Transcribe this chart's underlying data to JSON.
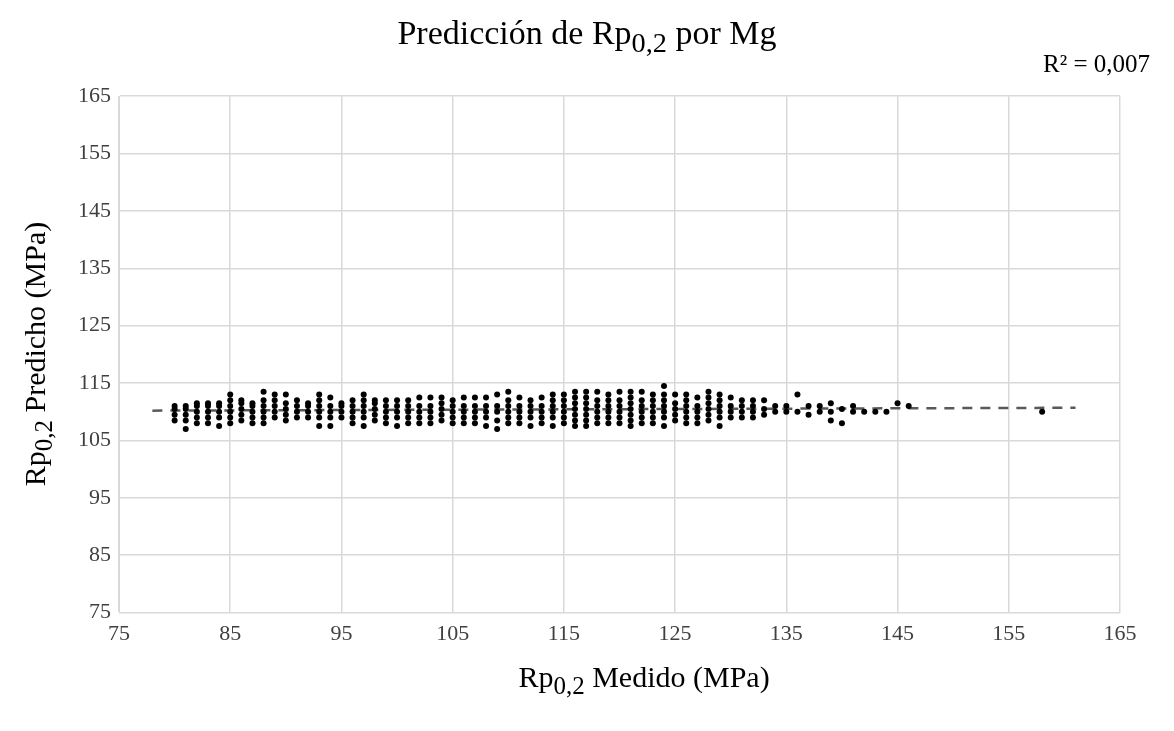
{
  "chart_data": {
    "type": "scatter",
    "title": "Predicción de Rp$_{0,2}$ por Mg",
    "xlabel": "Rp$_{0,2}$ Medido (MPa)",
    "ylabel": "Rp$_{0,2}$ Predicho (MPa)",
    "annotations": [
      "R² = 0,007"
    ],
    "xlim": [
      75,
      165
    ],
    "xticks": [
      75,
      85,
      95,
      105,
      115,
      125,
      135,
      145,
      155,
      165
    ],
    "ylim": [
      75,
      165
    ],
    "yticks": [
      75,
      85,
      95,
      105,
      115,
      125,
      135,
      145,
      155,
      165
    ],
    "grid": true,
    "legend": false,
    "series": [
      {
        "color": "#000000",
        "marker": "circle",
        "x": [
          80,
          80,
          80,
          80,
          81,
          81,
          81,
          81,
          81,
          82,
          82,
          82,
          82,
          82,
          83,
          83,
          83,
          83,
          83,
          84,
          84,
          84,
          84,
          84,
          85,
          85,
          85,
          85,
          85,
          85,
          86,
          86,
          86,
          86,
          86,
          87,
          87,
          87,
          87,
          87,
          88,
          88,
          88,
          88,
          88,
          88,
          89,
          89,
          89,
          89,
          89,
          90,
          90,
          90,
          90,
          90,
          91,
          91,
          91,
          91,
          92,
          92,
          92,
          92,
          93,
          93,
          93,
          93,
          93,
          93,
          94,
          94,
          94,
          94,
          94,
          95,
          95,
          95,
          95,
          96,
          96,
          96,
          96,
          96,
          97,
          97,
          97,
          97,
          97,
          97,
          98,
          98,
          98,
          98,
          98,
          99,
          99,
          99,
          99,
          99,
          100,
          100,
          100,
          100,
          100,
          101,
          101,
          101,
          101,
          101,
          102,
          102,
          102,
          102,
          102,
          103,
          103,
          103,
          103,
          103,
          104,
          104,
          104,
          104,
          104,
          105,
          105,
          105,
          105,
          105,
          106,
          106,
          106,
          106,
          106,
          107,
          107,
          107,
          107,
          107,
          108,
          108,
          108,
          108,
          108,
          109,
          109,
          109,
          109,
          109,
          110,
          110,
          110,
          110,
          110,
          110,
          111,
          111,
          111,
          111,
          111,
          112,
          112,
          112,
          112,
          112,
          113,
          113,
          113,
          113,
          113,
          114,
          114,
          114,
          114,
          114,
          114,
          115,
          115,
          115,
          115,
          115,
          115,
          116,
          116,
          116,
          116,
          116,
          116,
          116,
          117,
          117,
          117,
          117,
          117,
          117,
          117,
          118,
          118,
          118,
          118,
          118,
          118,
          119,
          119,
          119,
          119,
          119,
          119,
          120,
          120,
          120,
          120,
          120,
          120,
          121,
          121,
          121,
          121,
          121,
          121,
          121,
          122,
          122,
          122,
          122,
          122,
          122,
          123,
          123,
          123,
          123,
          123,
          123,
          124,
          124,
          124,
          124,
          124,
          124,
          124,
          125,
          125,
          125,
          125,
          125,
          126,
          126,
          126,
          126,
          126,
          126,
          127,
          127,
          127,
          127,
          127,
          128,
          128,
          128,
          128,
          128,
          128,
          129,
          129,
          129,
          129,
          129,
          129,
          130,
          130,
          130,
          130,
          131,
          131,
          131,
          131,
          132,
          132,
          132,
          132,
          133,
          133,
          133,
          134,
          134,
          135,
          135,
          136,
          136,
          137,
          137,
          138,
          138,
          139,
          139,
          139,
          140,
          140,
          141,
          141,
          142,
          143,
          144,
          145,
          146,
          158
        ],
        "values": [
          108.5,
          109.5,
          110.5,
          111,
          107,
          108.5,
          109.5,
          110.5,
          111,
          108,
          109,
          110,
          111,
          111.5,
          108,
          109,
          110,
          111,
          111.5,
          107.5,
          109,
          110,
          111,
          111.5,
          108,
          109,
          110,
          111,
          112,
          113,
          108.5,
          109.5,
          110.5,
          111.5,
          112,
          108,
          109,
          110,
          111,
          111.5,
          108,
          109,
          110,
          111,
          112,
          113.5,
          109,
          110,
          111,
          112,
          113,
          108.5,
          109.5,
          110.5,
          111.5,
          113,
          109,
          110,
          111,
          112,
          109,
          110,
          111,
          111.5,
          107.5,
          109,
          110,
          111,
          112,
          113,
          107.5,
          109,
          110,
          111,
          112.5,
          109,
          110,
          111,
          111.5,
          108,
          109,
          110,
          111,
          112,
          107.5,
          109,
          110,
          111,
          112,
          113,
          108.5,
          109.5,
          110.5,
          111.5,
          112,
          108,
          109,
          110,
          111,
          112,
          107.5,
          109,
          110,
          111,
          112,
          108,
          109,
          110,
          111,
          112,
          108,
          109,
          110,
          111,
          112.5,
          108,
          109,
          110,
          111,
          112.5,
          108.5,
          109.5,
          110.5,
          111.5,
          112.5,
          108,
          109,
          110,
          111,
          112,
          108,
          109,
          110,
          111,
          112.5,
          108,
          109,
          110,
          111,
          112.5,
          107.5,
          109,
          110,
          111,
          112.5,
          107,
          108.5,
          110,
          111,
          113,
          108,
          109,
          110,
          111,
          112,
          113.5,
          108,
          109,
          110,
          111,
          112.5,
          107.5,
          109,
          110,
          111,
          112,
          108,
          109,
          110,
          111,
          112.5,
          107.5,
          109,
          110,
          111,
          112,
          113,
          108,
          109,
          110,
          111,
          112,
          113,
          107.5,
          108.5,
          109.5,
          110.5,
          111.5,
          112.5,
          113.5,
          107.5,
          108.5,
          109.5,
          110.5,
          111.5,
          112.5,
          113.5,
          108,
          109,
          110,
          111,
          112,
          113.5,
          108,
          109,
          110,
          111,
          112,
          113,
          108,
          109,
          110,
          111,
          112,
          113.5,
          107.5,
          108.5,
          109.5,
          110.5,
          111.5,
          112.5,
          113.5,
          108,
          109,
          110,
          111,
          112,
          113.5,
          108,
          109,
          110,
          111,
          112,
          113,
          107.5,
          109,
          110,
          111,
          112,
          113,
          114.5,
          108.5,
          109.5,
          110.5,
          111.5,
          113,
          108,
          109,
          110,
          111,
          112,
          113,
          108,
          109,
          110,
          111,
          112.5,
          108.5,
          109.5,
          110.5,
          111.5,
          112.5,
          113.5,
          107.5,
          109,
          110,
          111,
          112,
          113,
          109,
          110,
          111,
          112.5,
          109,
          110,
          111,
          112,
          109,
          110,
          111,
          112,
          109.5,
          110.5,
          112,
          110,
          111,
          110,
          111,
          110,
          113,
          109.5,
          111,
          110,
          111,
          108.5,
          110,
          111.5,
          108,
          110.5,
          110,
          111,
          110,
          110,
          110,
          111.5,
          111,
          110
        ]
      },
      {
        "type": "line",
        "color": "#595959",
        "marker": "none",
        "line_style": "dashed",
        "x": [
          78,
          161
        ],
        "values": [
          110.2,
          110.7
        ]
      }
    ]
  }
}
